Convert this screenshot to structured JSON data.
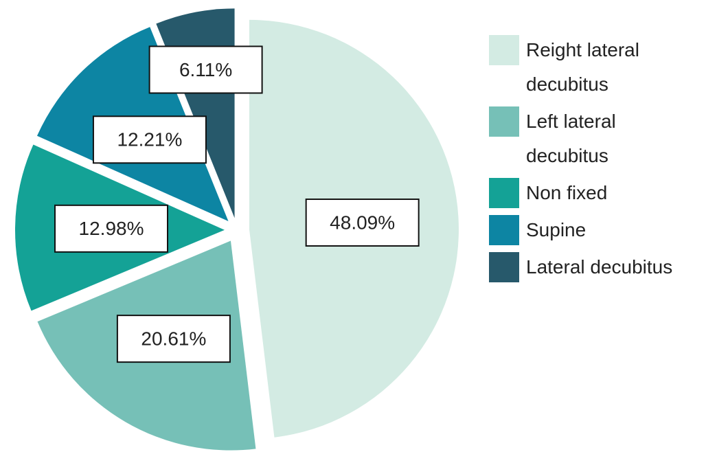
{
  "chart_data": {
    "type": "pie",
    "categories": [
      "Reight lateral decubitus",
      "Left lateral decubitus",
      "Non fixed",
      "Supine",
      "Lateral decubitus"
    ],
    "values": [
      48.09,
      20.61,
      12.98,
      12.21,
      6.11
    ],
    "value_labels": [
      "48.09%",
      "20.61%",
      "12.98%",
      "12.21%",
      "6.11%"
    ],
    "colors": [
      "#d3ebe3",
      "#76c0b7",
      "#14a296",
      "#0d85a3",
      "#27596b"
    ]
  }
}
